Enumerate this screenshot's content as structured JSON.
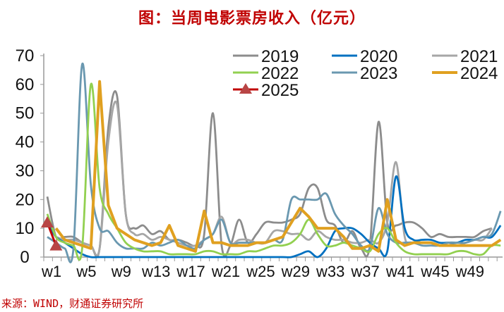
{
  "title": "图：当周电影票房收入（亿元）",
  "source": "来源：WIND，财通证券研究所",
  "chart_data": {
    "type": "line",
    "title": "图：当周电影票房收入（亿元）",
    "xlabel": "",
    "ylabel": "",
    "ylim": [
      0,
      70
    ],
    "yticks": [
      0,
      10,
      20,
      30,
      40,
      50,
      60,
      70
    ],
    "xtick_labels": [
      "w1",
      "w5",
      "w9",
      "w13",
      "w17",
      "w21",
      "w25",
      "w29",
      "w33",
      "w37",
      "w41",
      "w45",
      "w49"
    ],
    "x": [
      "w1",
      "w2",
      "w3",
      "w4",
      "w5",
      "w6",
      "w7",
      "w8",
      "w9",
      "w10",
      "w11",
      "w12",
      "w13",
      "w14",
      "w15",
      "w16",
      "w17",
      "w18",
      "w19",
      "w20",
      "w21",
      "w22",
      "w23",
      "w24",
      "w25",
      "w26",
      "w27",
      "w28",
      "w29",
      "w30",
      "w31",
      "w32",
      "w33",
      "w34",
      "w35",
      "w36",
      "w37",
      "w38",
      "w39",
      "w40",
      "w41",
      "w42",
      "w43",
      "w44",
      "w45",
      "w46",
      "w47",
      "w48",
      "w49",
      "w50",
      "w51",
      "w52",
      "w53"
    ],
    "legend_position": "top-right",
    "grid": false,
    "series": [
      {
        "name": "2019",
        "color": "#8c8c8c",
        "values": [
          21,
          7,
          7,
          7,
          5,
          4,
          3,
          45,
          56,
          15,
          10,
          11,
          8,
          9,
          6,
          6,
          5,
          4,
          8,
          50,
          4,
          4,
          13,
          5,
          8,
          12,
          12,
          12,
          13,
          15,
          24,
          24,
          13,
          11,
          5,
          9,
          3,
          4,
          47,
          12,
          11,
          12,
          12,
          10,
          7,
          8,
          7,
          7,
          7,
          7,
          9,
          10,
          null
        ]
      },
      {
        "name": "2020",
        "color": "#0070c0",
        "values": [
          12,
          7,
          5,
          3,
          1,
          0,
          0,
          0,
          0,
          0,
          0,
          0,
          0,
          0,
          0,
          0,
          0,
          0,
          0,
          0,
          0,
          0,
          0,
          0,
          0,
          0,
          0,
          0,
          0,
          1,
          2,
          0,
          3,
          9,
          10,
          10,
          8,
          5,
          3,
          2,
          28,
          10,
          6,
          6,
          6,
          5,
          5,
          5,
          6,
          6,
          7,
          7,
          11
        ]
      },
      {
        "name": "2021",
        "color": "#a6a6a6",
        "values": [
          null,
          7,
          6,
          6,
          5,
          4,
          3,
          40,
          53,
          15,
          8,
          8,
          6,
          7,
          6,
          5,
          4,
          4,
          6,
          8,
          14,
          5,
          6,
          6,
          5,
          5,
          9,
          9,
          8,
          8,
          6,
          9,
          7,
          6,
          6,
          5,
          5,
          6,
          5,
          12,
          33,
          7,
          5,
          5,
          5,
          4,
          5,
          4,
          5,
          6,
          6,
          10,
          null
        ]
      },
      {
        "name": "2022",
        "color": "#92d050",
        "values": [
          15,
          7,
          5,
          4,
          3,
          60,
          24,
          15,
          10,
          5,
          3,
          2,
          2,
          2,
          1,
          1,
          1,
          1,
          2,
          2,
          1,
          1,
          1,
          2,
          2,
          3,
          4,
          4,
          5,
          8,
          13,
          8,
          4,
          4,
          5,
          4,
          3,
          2,
          8,
          10,
          5,
          2,
          1,
          1,
          1,
          1,
          1,
          2,
          2,
          1,
          1,
          4,
          4
        ]
      },
      {
        "name": "2023",
        "color": "#6a98b0",
        "values": [
          7,
          5,
          3,
          3,
          67,
          25,
          10,
          9,
          5,
          3,
          3,
          3,
          5,
          4,
          5,
          6,
          4,
          3,
          6,
          8,
          13,
          5,
          5,
          5,
          5,
          5,
          6,
          6,
          20,
          20,
          20,
          20,
          22,
          15,
          11,
          8,
          4,
          3,
          17,
          8,
          5,
          5,
          5,
          4,
          4,
          4,
          5,
          5,
          5,
          6,
          7,
          8,
          16
        ]
      },
      {
        "name": "2024",
        "color": "#e0a020",
        "values": [
          null,
          10,
          6,
          5,
          4,
          3,
          61,
          18,
          10,
          8,
          6,
          5,
          4,
          5,
          11,
          4,
          3,
          2,
          16,
          5,
          5,
          4,
          4,
          4,
          5,
          5,
          6,
          7,
          12,
          17,
          14,
          10,
          10,
          10,
          7,
          3,
          3,
          4,
          2,
          20,
          6,
          4,
          5,
          5,
          5,
          4,
          4,
          4,
          4,
          4,
          4,
          4,
          6
        ]
      },
      {
        "name": "2025",
        "color": "#c00000",
        "marker": "triangle",
        "marker_color": "#b84545",
        "values": [
          12,
          4
        ]
      }
    ]
  }
}
